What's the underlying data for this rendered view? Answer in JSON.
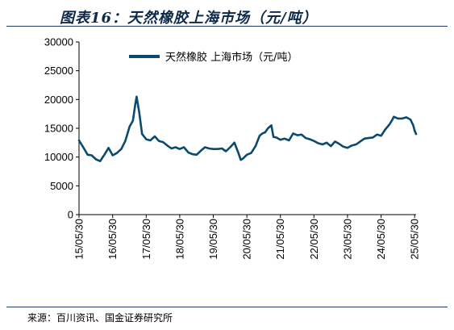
{
  "title": "图表16：天然橡胶上海市场（元/吨）",
  "source": "来源：百川资讯、国金证券研究所",
  "chart_data": {
    "type": "line",
    "legend": "天然橡胶 上海市场（元/吨）",
    "legend_position": "top",
    "line_color": "#0b4a6e",
    "ylim": [
      0,
      30000
    ],
    "yticks": [
      0,
      5000,
      10000,
      15000,
      20000,
      25000,
      30000
    ],
    "xlim": [
      "15/05/30",
      "25/06/15"
    ],
    "xticks": [
      "15/05/30",
      "16/05/30",
      "17/05/30",
      "18/05/30",
      "19/05/30",
      "20/05/30",
      "21/05/30",
      "22/05/30",
      "23/05/30",
      "24/05/30",
      "25/05/30"
    ],
    "grid": false,
    "series": [
      {
        "name": "天然橡胶 上海市场（元/吨）",
        "x": [
          "15/05/30",
          "15/07/15",
          "15/09/01",
          "15/10/15",
          "15/11/30",
          "16/01/15",
          "16/03/01",
          "16/04/15",
          "16/05/30",
          "16/07/15",
          "16/09/01",
          "16/10/15",
          "16/11/30",
          "17/01/05",
          "17/02/01",
          "17/02/15",
          "17/03/15",
          "17/04/15",
          "17/05/30",
          "17/07/15",
          "17/09/01",
          "17/10/15",
          "17/11/30",
          "18/01/15",
          "18/03/01",
          "18/04/15",
          "18/05/30",
          "18/07/15",
          "18/09/01",
          "18/10/15",
          "18/11/30",
          "19/01/15",
          "19/03/01",
          "19/04/15",
          "19/05/30",
          "19/07/15",
          "19/09/01",
          "19/10/15",
          "19/11/30",
          "20/01/15",
          "20/03/01",
          "20/03/25",
          "20/04/15",
          "20/05/30",
          "20/07/15",
          "20/09/01",
          "20/10/15",
          "20/11/15",
          "20/12/15",
          "21/01/15",
          "21/02/20",
          "21/03/15",
          "21/04/15",
          "21/05/30",
          "21/07/15",
          "21/09/01",
          "21/10/15",
          "21/11/30",
          "22/01/15",
          "22/03/01",
          "22/04/15",
          "22/05/30",
          "22/07/15",
          "22/09/01",
          "22/10/15",
          "22/11/30",
          "23/01/15",
          "23/03/01",
          "23/04/15",
          "23/05/30",
          "23/07/15",
          "23/09/01",
          "23/10/15",
          "23/11/30",
          "24/01/15",
          "24/03/01",
          "24/04/15",
          "24/05/30",
          "24/07/15",
          "24/08/30",
          "24/09/30",
          "24/10/15",
          "24/11/30",
          "25/01/15",
          "25/03/01",
          "25/04/15",
          "25/05/15",
          "25/05/30",
          "25/06/15"
        ],
        "values": [
          12900,
          11700,
          10400,
          10300,
          9600,
          9300,
          10400,
          11600,
          10300,
          10700,
          11400,
          12800,
          15300,
          16300,
          19200,
          20500,
          17800,
          14000,
          13100,
          12900,
          13600,
          12800,
          12600,
          12000,
          11500,
          11700,
          11400,
          11700,
          10800,
          10500,
          10400,
          11100,
          11700,
          11500,
          11400,
          11400,
          11500,
          11000,
          11700,
          12500,
          10600,
          9500,
          9700,
          10400,
          10700,
          11900,
          13700,
          14100,
          14300,
          15000,
          15500,
          13500,
          13400,
          13000,
          13200,
          12900,
          14100,
          13800,
          13900,
          13300,
          13100,
          12800,
          12400,
          12200,
          12500,
          11900,
          12700,
          12300,
          11800,
          11600,
          12000,
          12200,
          12700,
          13200,
          13300,
          13400,
          13900,
          13700,
          14800,
          15700,
          16500,
          17000,
          16700,
          16700,
          16900,
          16500,
          15500,
          14600,
          14000
        ]
      }
    ]
  }
}
